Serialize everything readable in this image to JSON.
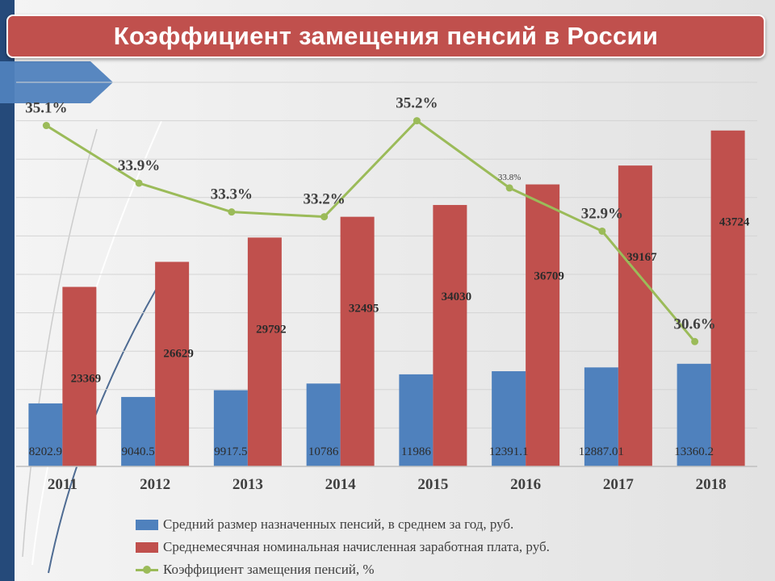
{
  "title": "Коэффициент замещения пенсий в России",
  "colors": {
    "pension": "#4f81bd",
    "wage": "#c0504d",
    "ratio": "#9bbb59",
    "grid": "#d4d4d4",
    "title_bg": "#c0504d",
    "accent_strip": "#254a7a"
  },
  "chart_data": {
    "type": "bar",
    "title": "Коэффициент замещения пенсий в России",
    "categories": [
      "2011",
      "2012",
      "2013",
      "2014",
      "2015",
      "2016",
      "2017",
      "2018"
    ],
    "ylim": [
      0,
      50000
    ],
    "grid": true,
    "legend_position": "bottom",
    "series": [
      {
        "name": "Средний размер назначенных пенсий, в среднем за год, руб.",
        "type": "bar",
        "values": [
          8202.9,
          9040.5,
          9917.5,
          10786,
          11986,
          12391.1,
          12887.01,
          13360.2
        ],
        "labels": [
          "8202.9",
          "9040.5",
          "9917.5",
          "10786",
          "11986",
          "12391.1",
          "12887.01",
          "13360.2"
        ]
      },
      {
        "name": "Среднемесячная номинальная начисленная заработная плата, руб.",
        "type": "bar",
        "values": [
          23369,
          26629,
          29792,
          32495,
          34030,
          36709,
          39167,
          43724
        ],
        "labels": [
          "23369",
          "26629",
          "29792",
          "32495",
          "34030",
          "36709",
          "39167",
          "43724"
        ]
      },
      {
        "name": "Коэффициент замещения пенсий, %",
        "type": "line",
        "values": [
          35.1,
          33.9,
          33.3,
          33.2,
          35.2,
          33.8,
          32.9,
          30.6
        ],
        "labels": [
          "35.1%",
          "33.9%",
          "33.3%",
          "33.2%",
          "35.2%",
          "33.8%",
          "32.9%",
          "30.6%"
        ],
        "ylim": [
          28,
          36
        ]
      }
    ]
  }
}
